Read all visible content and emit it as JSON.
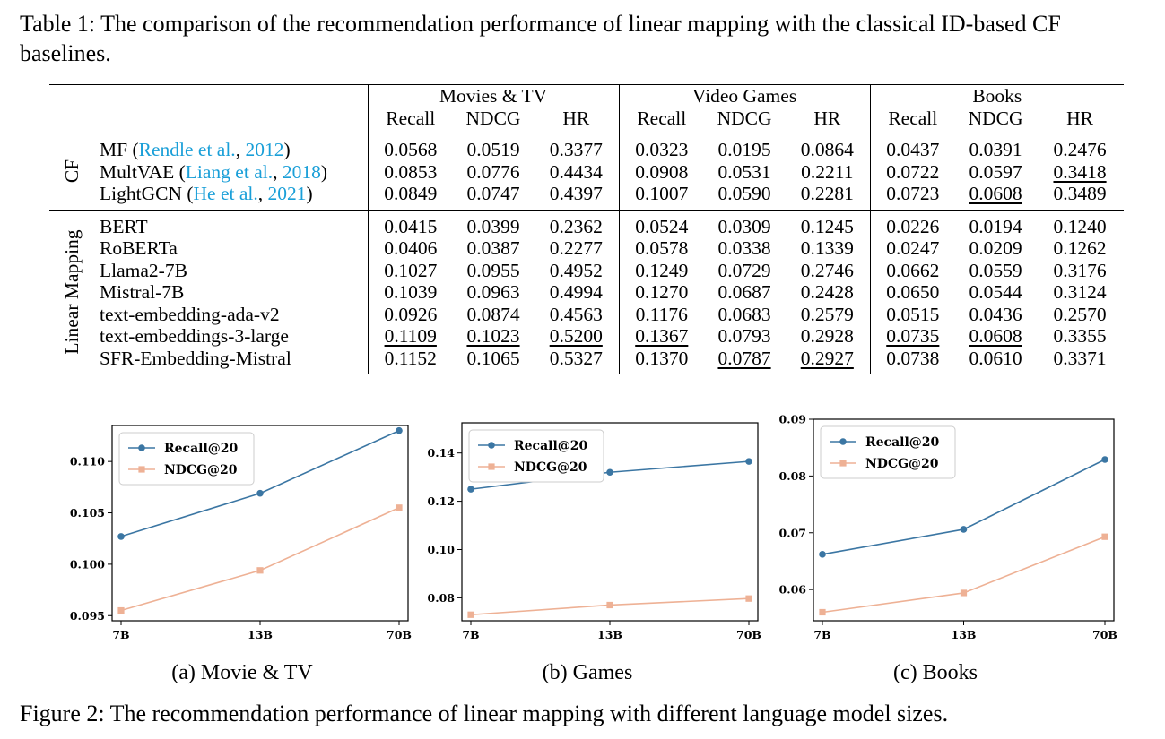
{
  "table_caption": "Table 1: The comparison of the recommendation performance of linear mapping with the classical ID-based CF baselines.",
  "datasets": [
    "Movies & TV",
    "Video Games",
    "Books"
  ],
  "metrics": [
    "Recall",
    "NDCG",
    "HR"
  ],
  "groups": [
    {
      "label": "CF",
      "rows": [
        {
          "name": "MF",
          "cite_author": "Rendle et al.",
          "cite_year": "2012",
          "values": [
            "0.0568",
            "0.0519",
            "0.3377",
            "0.0323",
            "0.0195",
            "0.0864",
            "0.0437",
            "0.0391",
            "0.2476"
          ],
          "bold": [],
          "underline": []
        },
        {
          "name": "MultVAE",
          "cite_author": "Liang et al.",
          "cite_year": "2018",
          "values": [
            "0.0853",
            "0.0776",
            "0.4434",
            "0.0908",
            "0.0531",
            "0.2211",
            "0.0722",
            "0.0597",
            "0.3418"
          ],
          "bold": [],
          "underline": [
            8
          ]
        },
        {
          "name": "LightGCN",
          "cite_author": "He et al.",
          "cite_year": "2021",
          "values": [
            "0.0849",
            "0.0747",
            "0.4397",
            "0.1007",
            "0.0590",
            "0.2281",
            "0.0723",
            "0.0608",
            "0.3489"
          ],
          "bold": [
            8
          ],
          "underline": [
            7
          ]
        }
      ]
    },
    {
      "label": "Linear Mapping",
      "rows": [
        {
          "name": "BERT",
          "values": [
            "0.0415",
            "0.0399",
            "0.2362",
            "0.0524",
            "0.0309",
            "0.1245",
            "0.0226",
            "0.0194",
            "0.1240"
          ],
          "bold": [],
          "underline": []
        },
        {
          "name": "RoBERTa",
          "values": [
            "0.0406",
            "0.0387",
            "0.2277",
            "0.0578",
            "0.0338",
            "0.1339",
            "0.0247",
            "0.0209",
            "0.1262"
          ],
          "bold": [],
          "underline": []
        },
        {
          "name": "Llama2-7B",
          "values": [
            "0.1027",
            "0.0955",
            "0.4952",
            "0.1249",
            "0.0729",
            "0.2746",
            "0.0662",
            "0.0559",
            "0.3176"
          ],
          "bold": [],
          "underline": []
        },
        {
          "name": "Mistral-7B",
          "values": [
            "0.1039",
            "0.0963",
            "0.4994",
            "0.1270",
            "0.0687",
            "0.2428",
            "0.0650",
            "0.0544",
            "0.3124"
          ],
          "bold": [],
          "underline": []
        },
        {
          "name": "text-embedding-ada-v2",
          "values": [
            "0.0926",
            "0.0874",
            "0.4563",
            "0.1176",
            "0.0683",
            "0.2579",
            "0.0515",
            "0.0436",
            "0.2570"
          ],
          "bold": [],
          "underline": []
        },
        {
          "name": "text-embeddings-3-large",
          "values": [
            "0.1109",
            "0.1023",
            "0.5200",
            "0.1367",
            "0.0793",
            "0.2928",
            "0.0735",
            "0.0608",
            "0.3355"
          ],
          "bold": [
            4,
            5
          ],
          "underline": [
            0,
            1,
            2,
            3,
            6,
            7
          ]
        },
        {
          "name": "SFR-Embedding-Mistral",
          "values": [
            "0.1152",
            "0.1065",
            "0.5327",
            "0.1370",
            "0.0787",
            "0.2927",
            "0.0738",
            "0.0610",
            "0.3371"
          ],
          "bold": [
            0,
            1,
            2,
            3,
            6,
            7
          ],
          "underline": [
            4,
            5
          ]
        }
      ]
    }
  ],
  "chart_data": [
    {
      "type": "line",
      "caption": "(a) Movie & TV",
      "categories": [
        "7B",
        "13B",
        "70B"
      ],
      "series": [
        {
          "name": "Recall@20",
          "values": [
            0.1027,
            0.1069,
            0.113
          ],
          "color": "#3b76a3"
        },
        {
          "name": "NDCG@20",
          "values": [
            0.0955,
            0.0994,
            0.1055
          ],
          "color": "#eeb195"
        }
      ],
      "ylim": [
        0.0945,
        0.1135
      ],
      "yticks": [
        "0.095",
        "0.100",
        "0.105",
        "0.110"
      ],
      "ytick_values": [
        0.095,
        0.1,
        0.105,
        0.11
      ],
      "legend": "upper-left"
    },
    {
      "type": "line",
      "caption": "(b) Games",
      "categories": [
        "7B",
        "13B",
        "70B"
      ],
      "series": [
        {
          "name": "Recall@20",
          "values": [
            0.125,
            0.132,
            0.1365
          ],
          "color": "#3b76a3"
        },
        {
          "name": "NDCG@20",
          "values": [
            0.073,
            0.077,
            0.0797
          ],
          "color": "#eeb195"
        }
      ],
      "ylim": [
        0.0705,
        0.1525
      ],
      "yticks": [
        "0.08",
        "0.10",
        "0.12",
        "0.14"
      ],
      "ytick_values": [
        0.08,
        0.1,
        0.12,
        0.14
      ],
      "legend": "upper-left"
    },
    {
      "type": "line",
      "caption": "(c) Books",
      "categories": [
        "7B",
        "13B",
        "70B"
      ],
      "series": [
        {
          "name": "Recall@20",
          "values": [
            0.0662,
            0.0706,
            0.0829
          ],
          "color": "#3b76a3"
        },
        {
          "name": "NDCG@20",
          "values": [
            0.056,
            0.0594,
            0.0693
          ],
          "color": "#eeb195"
        }
      ],
      "ylim": [
        0.0545,
        0.09
      ],
      "yticks": [
        "0.06",
        "0.07",
        "0.08",
        "0.09"
      ],
      "ytick_values": [
        0.06,
        0.07,
        0.08,
        0.09
      ],
      "legend": "upper-left"
    }
  ],
  "figure_caption": "Figure 2: The recommendation performance of linear mapping with different language model sizes."
}
